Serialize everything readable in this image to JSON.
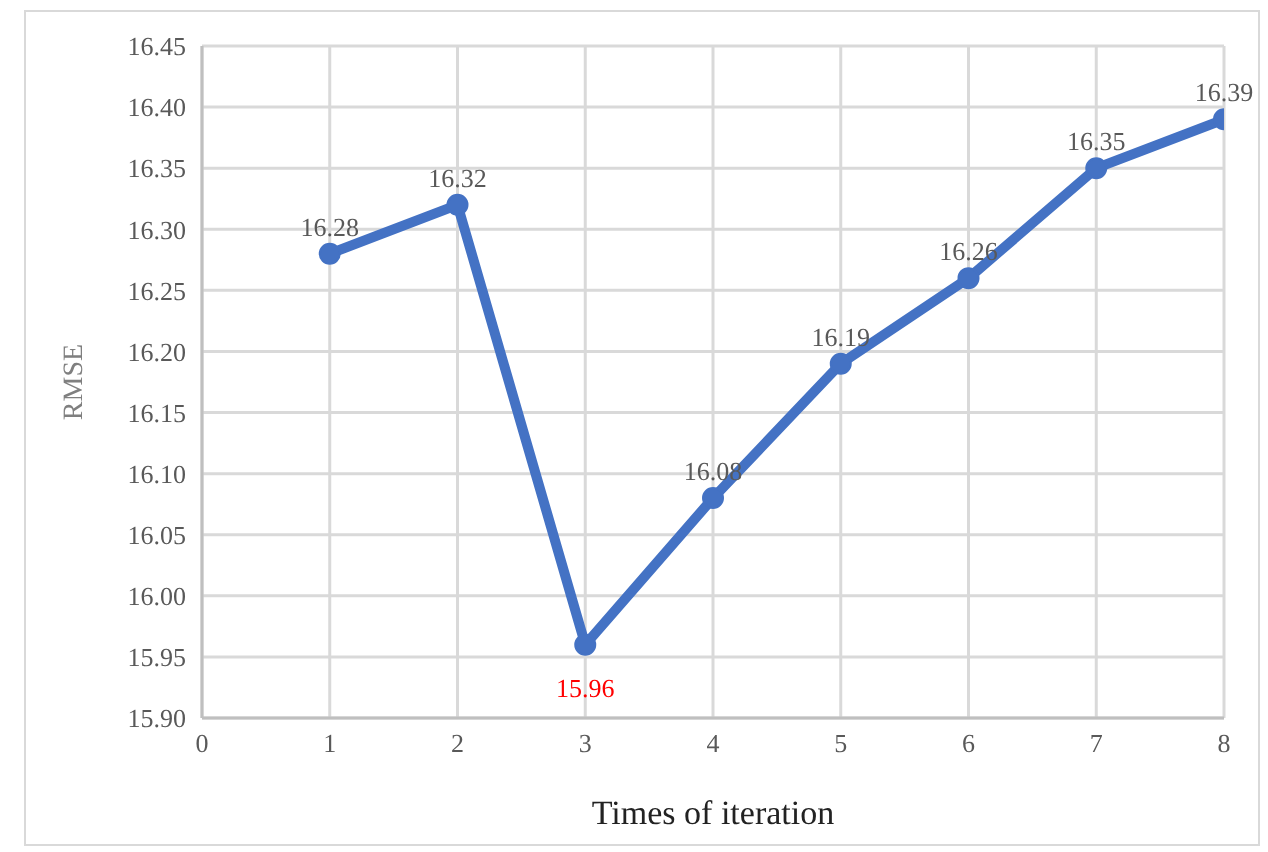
{
  "chart_data": {
    "type": "line",
    "xlabel": "Times of iteration",
    "ylabel": "RMSE",
    "x": [
      1,
      2,
      3,
      4,
      5,
      6,
      7,
      8
    ],
    "series": [
      {
        "color": "#4472c4",
        "values": [
          16.28,
          16.32,
          15.96,
          16.08,
          16.19,
          16.26,
          16.35,
          16.39
        ]
      }
    ],
    "xlim": [
      0,
      8
    ],
    "xticks": [
      0,
      1,
      2,
      3,
      4,
      5,
      6,
      7,
      8
    ],
    "ylim": [
      15.9,
      16.45
    ],
    "yticks": [
      {
        "value": 15.9,
        "label": "15.90"
      },
      15.95,
      {
        "value": 16.0,
        "label": "16.00"
      },
      16.05,
      {
        "value": 16.1,
        "label": "16.10"
      },
      16.15,
      {
        "value": 16.2,
        "label": "16.20"
      },
      16.25,
      {
        "value": 16.3,
        "label": "16.30"
      },
      16.35,
      {
        "value": 16.4,
        "label": "16.40"
      },
      16.45
    ],
    "grid": true,
    "marker": "circle",
    "line_style": "solid",
    "data_labels": true
  }
}
